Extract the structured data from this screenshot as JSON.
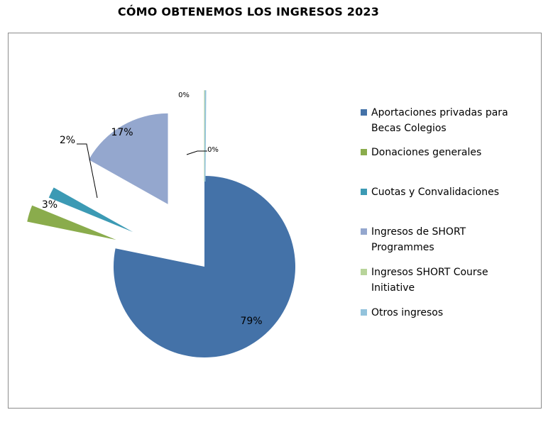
{
  "title": "CÓMO OBTENEMOS LOS INGRESOS 2023",
  "chart_data": {
    "type": "pie",
    "title": "CÓMO OBTENEMOS LOS INGRESOS 2023",
    "exploded": true,
    "legend_position": "right",
    "categories": [
      "Aportaciones privadas para Becas Colegios",
      "Donaciones generales",
      "Cuotas y Convalidaciones",
      "Ingresos de SHORT Programmes",
      "Ingresos SHORT Course Initiative",
      "Otros ingresos"
    ],
    "values": [
      79,
      3,
      2,
      17,
      0,
      0
    ],
    "labels": [
      "79%",
      "3%",
      "2%",
      "17%",
      "0%",
      "0%"
    ],
    "colors": [
      "#4472a8",
      "#8aac4c",
      "#3c9ab4",
      "#94a7ce",
      "#b8d49a",
      "#93c3dc"
    ]
  }
}
